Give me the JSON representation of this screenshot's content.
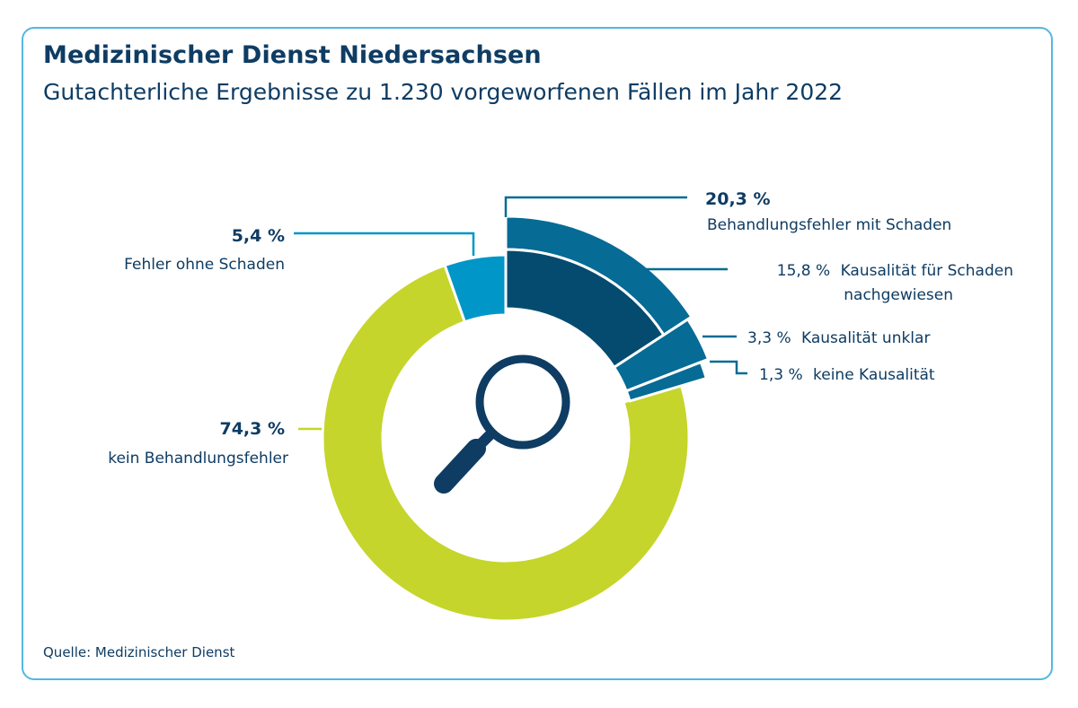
{
  "header": {
    "title": "Medizinischer Dienst Niedersachsen",
    "subtitle": "Gutachterliche Ergebnisse zu 1.230 vorgeworfenen Fällen im Jahr 2022"
  },
  "source": "Quelle: Medizinischer Dienst",
  "icon": "magnifier-icon",
  "colors": {
    "frame": "#54b8e0",
    "text": "#0e3c63",
    "kein_behandlungsfehler": "#c5d52b",
    "fehler_ohne_schaden": "#0096c8",
    "behandlungsfehler_mit_schaden": "#066b95",
    "kausalitaet_nachgewiesen": "#054b6f",
    "kausalitaet_unklar": "#066b95",
    "keine_kausalitaet": "#066b95"
  },
  "chart_data": {
    "type": "pie",
    "variant": "donut",
    "title": "Gutachterliche Ergebnisse zu 1.230 vorgeworfenen Fällen im Jahr 2022",
    "series": [
      {
        "name": "Behandlungsfehler mit Schaden",
        "value": 20.3,
        "value_label": "20,3 %"
      },
      {
        "name": "Fehler ohne Schaden",
        "value": 5.4,
        "value_label": "5,4 %"
      },
      {
        "name": "kein Behandlungsfehler",
        "value": 74.3,
        "value_label": "74,3 %"
      }
    ],
    "breakdown": {
      "parent": "Behandlungsfehler mit Schaden",
      "items": [
        {
          "name": "Kausalität für Schaden nachgewiesen",
          "value": 15.8,
          "value_label": "15,8 %",
          "text_line1": "Kausalität für Schaden",
          "text_line2": "nachgewiesen"
        },
        {
          "name": "Kausalität unklar",
          "value": 3.3,
          "value_label": "3,3 %",
          "text_line1": "Kausalität unklar"
        },
        {
          "name": "keine Kausalität",
          "value": 1.3,
          "value_label": "1,3 %",
          "text_line1": "keine Kausalität"
        }
      ]
    }
  }
}
